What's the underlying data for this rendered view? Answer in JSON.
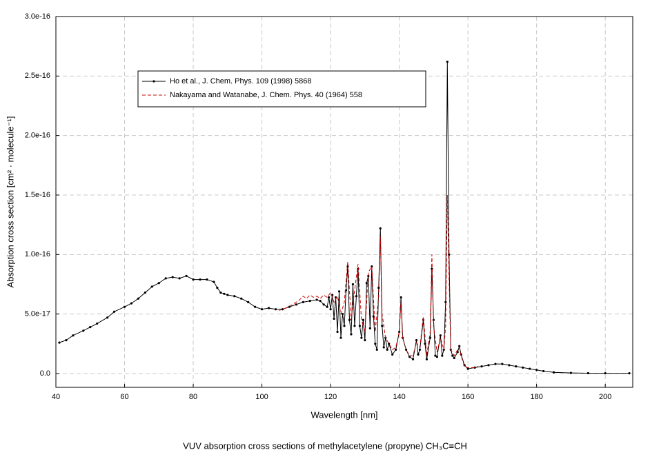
{
  "chart_data": {
    "type": "line",
    "title": "VUV absorption cross sections of methylacetylene (propyne) CH₃C≡CH",
    "xlabel": "Wavelength [nm]",
    "ylabel": "Absorption cross section [cm² · molecule⁻¹]",
    "xlim": [
      40,
      208
    ],
    "xticks": [
      40,
      60,
      80,
      100,
      120,
      140,
      160,
      180,
      200
    ],
    "ylim": [
      -1.16e-17,
      3e-16
    ],
    "yticks": [
      {
        "value": 0,
        "label": "0.0"
      },
      {
        "value": 5e-17,
        "label": "5.0e-17"
      },
      {
        "value": 1e-16,
        "label": "1.0e-16"
      },
      {
        "value": 1.5e-16,
        "label": "1.5e-16"
      },
      {
        "value": 2e-16,
        "label": "2.0e-16"
      },
      {
        "value": 2.5e-16,
        "label": "2.5e-16"
      },
      {
        "value": 3e-16,
        "label": "3.0e-16"
      }
    ],
    "grid": true,
    "legend": "upper left",
    "series": [
      {
        "name": "Ho et al., J. Chem. Phys. 109 (1998) 5868",
        "color": "#000000",
        "linestyle": "solid",
        "marker": true,
        "x": [
          41,
          43,
          45,
          48,
          50,
          52,
          55,
          57,
          60,
          62,
          64,
          66,
          68,
          70,
          72,
          74,
          76,
          78,
          80,
          82,
          84,
          86,
          87,
          88,
          89,
          90,
          92,
          94,
          96,
          98,
          100,
          102,
          104,
          106,
          108,
          110,
          112,
          114,
          116,
          117,
          118,
          119,
          119.5,
          120,
          120.5,
          121,
          121.5,
          122,
          122.5,
          123,
          123.5,
          124,
          124.5,
          125,
          125.5,
          126,
          126.5,
          127,
          127.5,
          128,
          128.5,
          129,
          129.5,
          130,
          130.5,
          131,
          131.5,
          132,
          132.5,
          133,
          133.5,
          134,
          134.5,
          135,
          135.5,
          136,
          136.5,
          137,
          138,
          139,
          140,
          140.5,
          141,
          142,
          143,
          144,
          145,
          145.5,
          146,
          147,
          147.5,
          148,
          149,
          149.5,
          150,
          150.5,
          151,
          152,
          152.5,
          153,
          153.5,
          154,
          154.5,
          155,
          155.5,
          156,
          157,
          157.5,
          158,
          159,
          160,
          162,
          164,
          166,
          168,
          170,
          172,
          174,
          176,
          178,
          180,
          182,
          185,
          190,
          195,
          200,
          207
        ],
        "values": [
          2.6e-17,
          2.8e-17,
          3.2e-17,
          3.6e-17,
          3.9e-17,
          4.2e-17,
          4.7e-17,
          5.2e-17,
          5.6e-17,
          5.9e-17,
          6.3e-17,
          6.8e-17,
          7.3e-17,
          7.6e-17,
          8e-17,
          8.1e-17,
          8e-17,
          8.2e-17,
          7.9e-17,
          7.9e-17,
          7.9e-17,
          7.7e-17,
          7.2e-17,
          6.8e-17,
          6.7e-17,
          6.6e-17,
          6.5e-17,
          6.3e-17,
          6e-17,
          5.6e-17,
          5.4e-17,
          5.5e-17,
          5.4e-17,
          5.4e-17,
          5.6e-17,
          5.8e-17,
          6e-17,
          6.1e-17,
          6.2e-17,
          6.1e-17,
          5.8e-17,
          5.6e-17,
          6.4e-17,
          5.4e-17,
          6.6e-17,
          4.6e-17,
          6.4e-17,
          3.5e-17,
          6.9e-17,
          3e-17,
          5e-17,
          4e-17,
          7e-17,
          9e-17,
          4.5e-17,
          3.3e-17,
          7.5e-17,
          4e-17,
          6.5e-17,
          8.8e-17,
          4e-17,
          3e-17,
          4.5e-17,
          2.8e-17,
          7.6e-17,
          8.2e-17,
          3.8e-17,
          9e-17,
          4.8e-17,
          2.5e-17,
          2e-17,
          7.2e-17,
          1.22e-16,
          4e-17,
          2.2e-17,
          3e-17,
          2e-17,
          2.5e-17,
          1.6e-17,
          2e-17,
          3.5e-17,
          6.4e-17,
          3e-17,
          2e-17,
          1.4e-17,
          1.2e-17,
          2.8e-17,
          1.6e-17,
          2e-17,
          4.5e-17,
          2.5e-17,
          1.2e-17,
          3e-17,
          8.8e-17,
          4.5e-17,
          1.5e-17,
          1.4e-17,
          3.2e-17,
          1.5e-17,
          2e-17,
          6e-17,
          2.62e-16,
          1e-16,
          2e-17,
          1.5e-17,
          1.3e-17,
          1.8e-17,
          2.3e-17,
          1.6e-17,
          7e-18,
          4e-18,
          5e-18,
          6e-18,
          7e-18,
          8e-18,
          8e-18,
          7e-18,
          6e-18,
          5e-18,
          4e-18,
          3e-18,
          2e-18,
          1e-18,
          5e-19,
          3e-19,
          2e-19,
          2e-19
        ]
      },
      {
        "name": "Nakayama and Watanabe, J. Chem. Phys. 40 (1964) 558",
        "color": "#cc0000",
        "linestyle": "dashed",
        "marker": false,
        "x": [
          105,
          107,
          109,
          111,
          112,
          113,
          114,
          115,
          116,
          117,
          118,
          119,
          120,
          121,
          122,
          123,
          124,
          125,
          126,
          127,
          128,
          129,
          130,
          131,
          132,
          133,
          134,
          134.5,
          135,
          136,
          137,
          138,
          139,
          140,
          140.5,
          141,
          142,
          143,
          144,
          145,
          146,
          147,
          148,
          149,
          149.5,
          150,
          151,
          152,
          153,
          153.5,
          154,
          154.5,
          155,
          156,
          157,
          157.5,
          158,
          159,
          160,
          162,
          163
        ],
        "values": [
          5.3e-17,
          5.5e-17,
          5.8e-17,
          6.2e-17,
          6.5e-17,
          6.3e-17,
          6.6e-17,
          6.4e-17,
          6.5e-17,
          6.3e-17,
          6.6e-17,
          6.4e-17,
          6.8e-17,
          6e-17,
          6.5e-17,
          5e-17,
          6e-17,
          9.4e-17,
          4.5e-17,
          7e-17,
          9.2e-17,
          4.5e-17,
          3.5e-17,
          8.5e-17,
          9e-17,
          3.5e-17,
          6.5e-17,
          1.15e-16,
          5e-17,
          3e-17,
          2.5e-17,
          2e-17,
          2.2e-17,
          3.5e-17,
          6e-17,
          3e-17,
          2e-17,
          1.5e-17,
          1.5e-17,
          2.6e-17,
          2.2e-17,
          4.8e-17,
          1.5e-17,
          3.5e-17,
          1e-16,
          4e-17,
          1.8e-17,
          3e-17,
          2e-17,
          4e-17,
          1.5e-16,
          8e-17,
          2e-17,
          1.5e-17,
          2e-17,
          2.2e-17,
          1.5e-17,
          6e-18,
          5e-18,
          5e-18,
          6e-18
        ]
      }
    ]
  }
}
